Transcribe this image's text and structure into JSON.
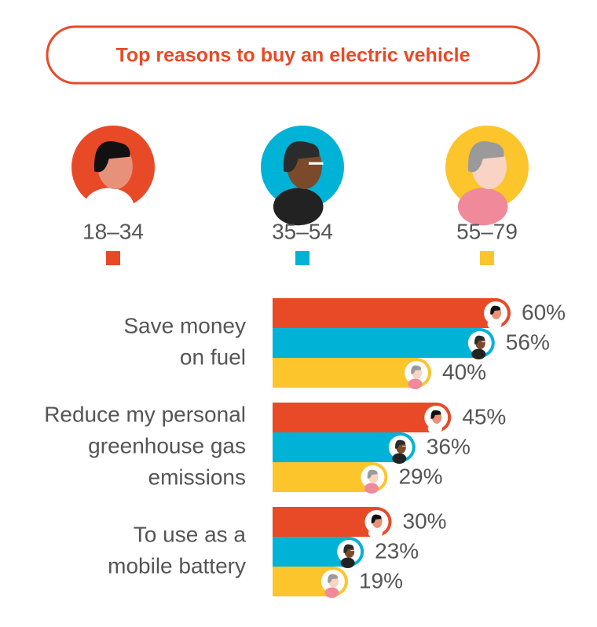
{
  "chart_data": {
    "type": "bar",
    "orientation": "horizontal",
    "title": "Top reasons to buy an electric vehicle",
    "categories": [
      [
        "Save money",
        "on fuel"
      ],
      [
        "Reduce my personal",
        "greenhouse gas",
        "emissions"
      ],
      [
        "To use as a",
        "mobile battery"
      ]
    ],
    "series": [
      {
        "name": "18–34",
        "color": "#e84a27",
        "values": [
          60,
          45,
          30
        ],
        "value_labels": [
          "60%",
          "45%",
          "30%"
        ]
      },
      {
        "name": "35–54",
        "color": "#00b2d6",
        "values": [
          56,
          36,
          23
        ],
        "value_labels": [
          "56%",
          "36%",
          "23%"
        ]
      },
      {
        "name": "55–79",
        "color": "#fcc52c",
        "values": [
          40,
          29,
          19
        ],
        "value_labels": [
          "40%",
          "29%",
          "19%"
        ]
      }
    ]
  }
}
